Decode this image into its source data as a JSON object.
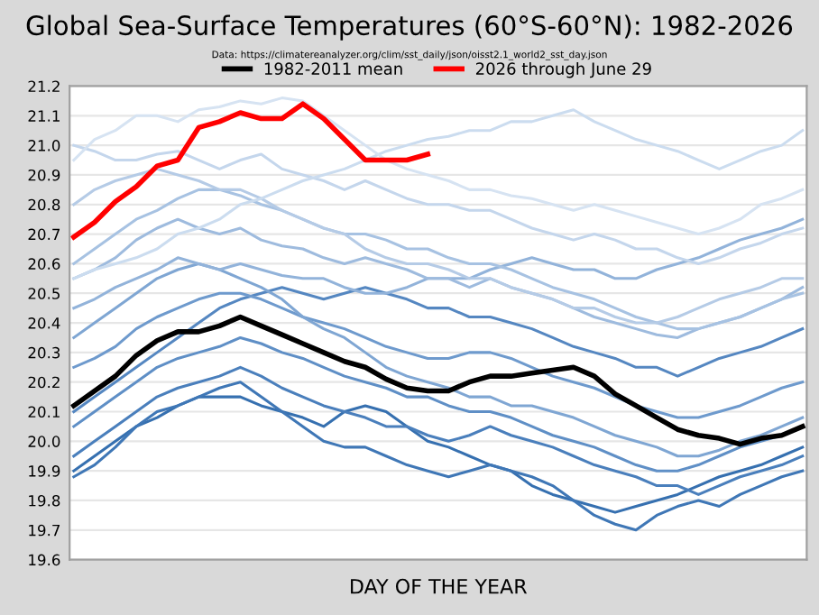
{
  "chart_data": {
    "type": "line",
    "title": "Global Sea-Surface Temperatures (60°S-60°N): 1982-2026",
    "subtitle": "Data: https://climatereanalyzer.org/clim/sst_daily/json/oisst2.1_world2_sst_day.json",
    "xlabel": "DAY OF THE YEAR",
    "categories": [
      null,
      null,
      null,
      null,
      null,
      null,
      null,
      null,
      null,
      null,
      null,
      null,
      null,
      null,
      null,
      null,
      null,
      null,
      null,
      null,
      null,
      null,
      null,
      null,
      null,
      null,
      null,
      null,
      null,
      null,
      null,
      null,
      null,
      null,
      null,
      null
    ],
    "ylim": [
      19.6,
      21.2
    ],
    "yticks": [
      19.6,
      19.7,
      19.8,
      19.9,
      {
        "value": 20,
        "label": "20.0"
      },
      20.1,
      20.2,
      20.3,
      20.4,
      20.5,
      20.6,
      20.7,
      20.8,
      20.9,
      {
        "value": 21,
        "label": "21.0"
      },
      21.1,
      21.2
    ],
    "grid": "y",
    "legend": "top",
    "series": [
      {
        "color": "#3670b0",
        "values": [
          19.9,
          19.95,
          20.0,
          20.05,
          20.08,
          20.12,
          20.15,
          20.15,
          20.15,
          20.12,
          20.1,
          20.08,
          20.05,
          20.1,
          20.12,
          20.1,
          20.05,
          20.0,
          19.98,
          19.95,
          19.92,
          19.9,
          19.85,
          19.82,
          19.8,
          19.78,
          19.76,
          19.78,
          19.8,
          19.82,
          19.85,
          19.88,
          19.9,
          19.92,
          19.95,
          19.98
        ]
      },
      {
        "color": "#3f77b6",
        "values": [
          19.88,
          19.92,
          19.98,
          20.05,
          20.1,
          20.12,
          20.15,
          20.18,
          20.2,
          20.15,
          20.1,
          20.05,
          20.0,
          19.98,
          19.98,
          19.95,
          19.92,
          19.9,
          19.88,
          19.9,
          19.92,
          19.9,
          19.88,
          19.85,
          19.8,
          19.75,
          19.72,
          19.7,
          19.75,
          19.78,
          19.8,
          19.78,
          19.82,
          19.85,
          19.88,
          19.9
        ]
      },
      {
        "color": "#4a7fbc",
        "values": [
          19.95,
          20.0,
          20.05,
          20.1,
          20.15,
          20.18,
          20.2,
          20.22,
          20.25,
          20.22,
          20.18,
          20.15,
          20.12,
          20.1,
          20.08,
          20.05,
          20.05,
          20.02,
          20.0,
          20.02,
          20.05,
          20.02,
          20.0,
          19.98,
          19.95,
          19.92,
          19.9,
          19.88,
          19.85,
          19.85,
          19.82,
          19.85,
          19.88,
          19.9,
          19.92,
          19.95
        ]
      },
      {
        "color": "#5587c1",
        "values": [
          20.1,
          20.15,
          20.2,
          20.25,
          20.3,
          20.35,
          20.4,
          20.45,
          20.48,
          20.5,
          20.52,
          20.5,
          20.48,
          20.5,
          20.52,
          20.5,
          20.48,
          20.45,
          20.45,
          20.42,
          20.42,
          20.4,
          20.38,
          20.35,
          20.32,
          20.3,
          20.28,
          20.25,
          20.25,
          20.22,
          20.25,
          20.28,
          20.3,
          20.32,
          20.35,
          20.38
        ]
      },
      {
        "color": "#5f8fc6",
        "values": [
          20.05,
          20.1,
          20.15,
          20.2,
          20.25,
          20.28,
          20.3,
          20.32,
          20.35,
          20.33,
          20.3,
          20.28,
          20.25,
          20.22,
          20.2,
          20.18,
          20.15,
          20.15,
          20.12,
          20.1,
          20.1,
          20.08,
          20.05,
          20.02,
          20.0,
          19.98,
          19.95,
          19.92,
          19.9,
          19.9,
          19.92,
          19.95,
          19.98,
          20.0,
          20.02,
          20.05
        ]
      },
      {
        "color": "#6e9acd",
        "values": [
          20.25,
          20.28,
          20.32,
          20.38,
          20.42,
          20.45,
          20.48,
          20.5,
          20.5,
          20.48,
          20.45,
          20.42,
          20.4,
          20.38,
          20.35,
          20.32,
          20.3,
          20.28,
          20.28,
          20.3,
          20.3,
          20.28,
          20.25,
          20.22,
          20.2,
          20.18,
          20.15,
          20.12,
          20.1,
          20.08,
          20.08,
          20.1,
          20.12,
          20.15,
          20.18,
          20.2
        ]
      },
      {
        "color": "#7fa6d3",
        "values": [
          20.35,
          20.4,
          20.45,
          20.5,
          20.55,
          20.58,
          20.6,
          20.58,
          20.55,
          20.52,
          20.48,
          20.42,
          20.38,
          20.35,
          20.3,
          20.25,
          20.22,
          20.2,
          20.18,
          20.15,
          20.15,
          20.12,
          20.12,
          20.1,
          20.08,
          20.05,
          20.02,
          20.0,
          19.98,
          19.95,
          19.95,
          19.97,
          20.0,
          20.02,
          20.05,
          20.08
        ]
      },
      {
        "color": "#92b3da",
        "values": [
          20.45,
          20.48,
          20.52,
          20.55,
          20.58,
          20.62,
          20.6,
          20.58,
          20.6,
          20.58,
          20.56,
          20.55,
          20.55,
          20.52,
          20.5,
          20.5,
          20.52,
          20.55,
          20.55,
          20.55,
          20.58,
          20.6,
          20.62,
          20.6,
          20.58,
          20.58,
          20.55,
          20.55,
          20.58,
          20.6,
          20.62,
          20.65,
          20.68,
          20.7,
          20.72,
          20.75
        ]
      },
      {
        "color": "#9ebbde",
        "values": [
          20.55,
          20.58,
          20.62,
          20.68,
          20.72,
          20.75,
          20.72,
          20.7,
          20.72,
          20.68,
          20.66,
          20.65,
          20.62,
          20.6,
          20.62,
          20.6,
          20.58,
          20.55,
          20.55,
          20.52,
          20.55,
          20.52,
          20.5,
          20.48,
          20.45,
          20.42,
          20.4,
          20.38,
          20.36,
          20.35,
          20.38,
          20.4,
          20.42,
          20.45,
          20.48,
          20.52
        ]
      },
      {
        "color": "#a7c2e2",
        "values": [
          20.6,
          20.65,
          20.7,
          20.75,
          20.78,
          20.82,
          20.85,
          20.85,
          20.83,
          20.8,
          20.78,
          20.75,
          20.72,
          20.7,
          20.7,
          20.68,
          20.65,
          20.65,
          20.62,
          20.6,
          20.6,
          20.58,
          20.55,
          20.52,
          20.5,
          20.48,
          20.45,
          20.42,
          20.4,
          20.38,
          20.38,
          20.4,
          20.42,
          20.45,
          20.48,
          20.5
        ]
      },
      {
        "color": "#b5cbe6",
        "values": [
          20.8,
          20.85,
          20.88,
          20.9,
          20.92,
          20.9,
          20.88,
          20.85,
          20.85,
          20.82,
          20.78,
          20.75,
          20.72,
          20.7,
          20.65,
          20.62,
          20.6,
          20.6,
          20.58,
          20.55,
          20.55,
          20.52,
          20.5,
          20.48,
          20.45,
          20.45,
          20.42,
          20.4,
          20.4,
          20.42,
          20.45,
          20.48,
          20.5,
          20.52,
          20.55,
          20.55
        ]
      },
      {
        "color": "#c4d6ec",
        "values": [
          21.0,
          20.98,
          20.95,
          20.95,
          20.97,
          20.98,
          20.95,
          20.92,
          20.95,
          20.97,
          20.92,
          20.9,
          20.88,
          20.85,
          20.88,
          20.85,
          20.82,
          20.8,
          20.8,
          20.78,
          20.78,
          20.75,
          20.72,
          20.7,
          20.68,
          20.7,
          20.68,
          20.65,
          20.65,
          20.62,
          20.6,
          20.62,
          20.65,
          20.67,
          20.7,
          20.72
        ]
      },
      {
        "color": "#cbdcef",
        "values": [
          20.55,
          20.58,
          20.6,
          20.62,
          20.65,
          20.7,
          20.72,
          20.75,
          20.8,
          20.82,
          20.85,
          20.88,
          20.9,
          20.92,
          20.95,
          20.98,
          21.0,
          21.02,
          21.03,
          21.05,
          21.05,
          21.08,
          21.08,
          21.1,
          21.12,
          21.08,
          21.05,
          21.02,
          21.0,
          20.98,
          20.95,
          20.92,
          20.95,
          20.98,
          21.0,
          21.05
        ]
      },
      {
        "color": "#d6e3f2",
        "values": [
          20.95,
          21.02,
          21.05,
          21.1,
          21.1,
          21.08,
          21.12,
          21.13,
          21.15,
          21.14,
          21.16,
          21.15,
          21.1,
          21.05,
          21.0,
          20.95,
          20.92,
          20.9,
          20.88,
          20.85,
          20.85,
          20.83,
          20.82,
          20.8,
          20.78,
          20.8,
          20.78,
          20.76,
          20.74,
          20.72,
          20.7,
          20.72,
          20.75,
          20.8,
          20.82,
          20.85
        ]
      },
      {
        "name": "1982-2011 mean",
        "color": "#000000",
        "values": [
          20.12,
          20.17,
          20.22,
          20.29,
          20.34,
          20.37,
          20.37,
          20.39,
          20.42,
          20.39,
          20.36,
          20.33,
          20.3,
          20.27,
          20.25,
          20.21,
          20.18,
          20.17,
          20.17,
          20.2,
          20.22,
          20.22,
          20.23,
          20.24,
          20.25,
          20.22,
          20.16,
          20.12,
          20.08,
          20.04,
          20.02,
          20.01,
          19.99,
          20.01,
          20.02,
          20.05
        ]
      },
      {
        "name": "2026 through June 29",
        "color": "#ff0000",
        "values": [
          20.69,
          20.74,
          20.81,
          20.86,
          20.93,
          20.95,
          21.06,
          21.08,
          21.11,
          21.09,
          21.09,
          21.14,
          21.09,
          21.02,
          20.95,
          20.95,
          20.95,
          20.97,
          null,
          null,
          null,
          null,
          null,
          null,
          null,
          null,
          null,
          null,
          null,
          null,
          null,
          null,
          null,
          null,
          null,
          null
        ]
      }
    ]
  }
}
